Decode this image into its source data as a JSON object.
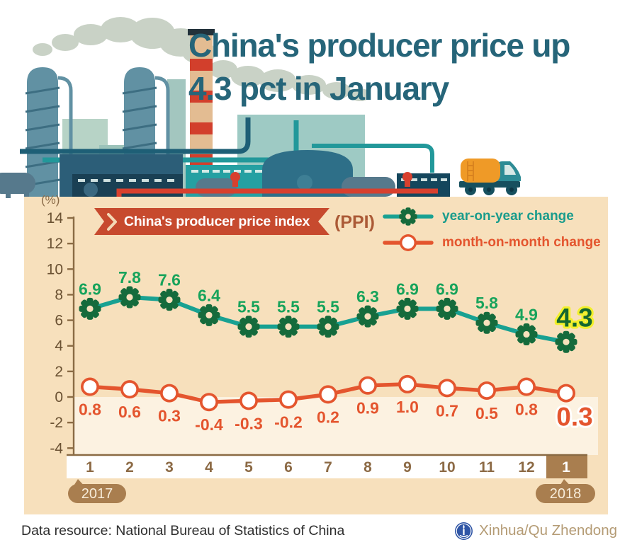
{
  "title": {
    "line1": "China's producer price up",
    "line2": "4.3 pct in January"
  },
  "banner": {
    "label": "China's producer price index",
    "suffix": "(PPI)"
  },
  "legend": {
    "items": [
      {
        "label": "year-on-year change",
        "marker": "gear-icon",
        "color": "#1a9c8c"
      },
      {
        "label": "month-on-month change",
        "marker": "circle-icon",
        "color": "#e4552e"
      }
    ]
  },
  "y_axis": {
    "unit_label": "(%)",
    "ticks": [
      14,
      12,
      10,
      8,
      6,
      4,
      2,
      0,
      -2,
      -4
    ]
  },
  "x_axis": {
    "year_left": "2017",
    "year_right": "2018"
  },
  "chart_data": {
    "type": "line",
    "title": "China's producer price index (PPI)",
    "categories": [
      "1",
      "2",
      "3",
      "4",
      "5",
      "6",
      "7",
      "8",
      "9",
      "10",
      "11",
      "12",
      "1"
    ],
    "series": [
      {
        "name": "year-on-year change",
        "values": [
          6.9,
          7.8,
          7.6,
          6.4,
          5.5,
          5.5,
          5.5,
          6.3,
          6.9,
          6.9,
          5.8,
          4.9,
          4.3
        ],
        "line_color": "#18a192",
        "marker": "gear",
        "label_color": "#17a35b",
        "last_value_highlight": {
          "fill": "#15682f",
          "outline": "#f3f02b"
        }
      },
      {
        "name": "month-on-month change",
        "values": [
          0.8,
          0.6,
          0.3,
          -0.4,
          -0.3,
          -0.2,
          0.2,
          0.9,
          1.0,
          0.7,
          0.5,
          0.8,
          0.3
        ],
        "line_color": "#e4552e",
        "marker": "circle",
        "label_color": "#e4552e",
        "last_value_highlight": {
          "fill": "#e4552e",
          "outline": "#ffffff"
        }
      }
    ],
    "ylim": [
      -4,
      14
    ],
    "ylabel": "(%)",
    "grid": false,
    "legend_position": "top-right",
    "highlighted_category_index": 12
  },
  "footer": {
    "source": "Data resource: National Bureau of Statistics of China",
    "credit": "Xinhua/Qu Zhendong"
  },
  "colors": {
    "title": "#266579",
    "panel_bg": "#f7e0bc",
    "below_zero_bg": "#fcf2e1",
    "ribbon_bg": "#c74a2e",
    "ppi_text": "#ab5a36",
    "axis_text": "#6b5233",
    "axis_line": "#8a6b44",
    "month_text": "#8c6a45",
    "year_bubble": "#a97e4f",
    "footer_text": "#2f2f2f",
    "credit_text": "#b49b74",
    "logo_blue": "#3056a6"
  }
}
